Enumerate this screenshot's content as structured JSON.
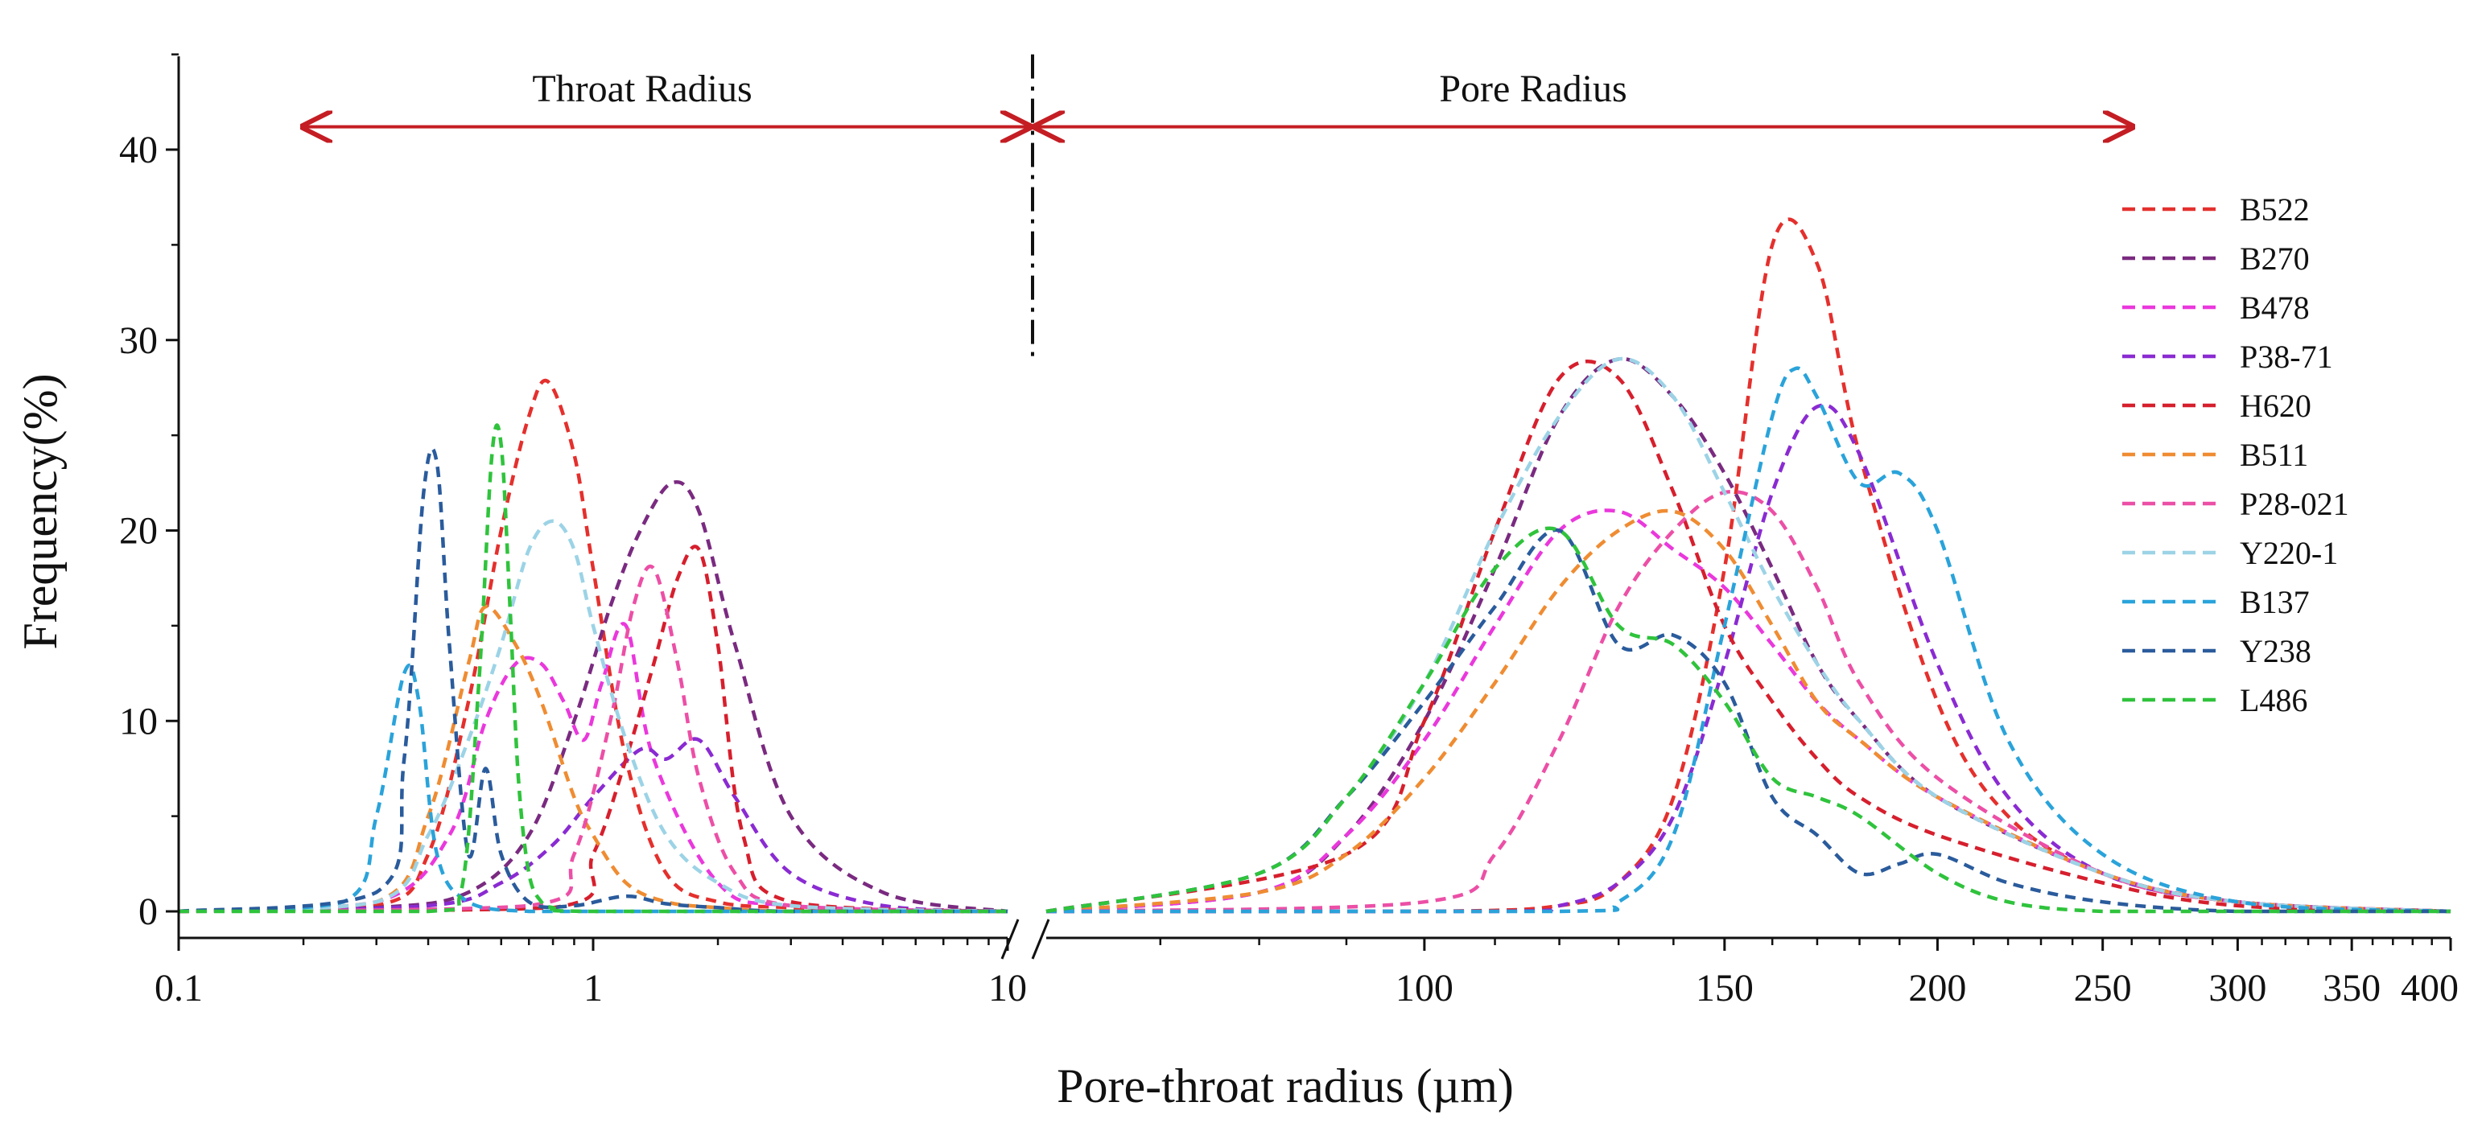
{
  "chart_data": {
    "type": "line",
    "title": "",
    "xlabel": "Pore-throat radius (µm)",
    "ylabel": "Frequency(%)",
    "ylim": [
      0,
      45
    ],
    "y_ticks": [
      0,
      10,
      20,
      30,
      40
    ],
    "y_tick_labels": [
      "0",
      "10",
      "20",
      "30",
      "40"
    ],
    "x_axis_segments": [
      {
        "name": "throat",
        "scale": "log",
        "range": [
          0.1,
          10
        ],
        "ticks": [
          0.1,
          1,
          10
        ],
        "tick_labels": [
          "0.1",
          "1",
          "10"
        ]
      },
      {
        "name": "pore",
        "scale": "log",
        "range": [
          60,
          400
        ],
        "ticks": [
          100,
          150,
          200,
          250,
          300,
          350,
          400
        ],
        "tick_labels": [
          "100",
          "150",
          "200",
          "250",
          "300",
          "350",
          "400"
        ]
      }
    ],
    "annotations": {
      "left_region_label": "Throat Radius",
      "right_region_label": "Pore Radius",
      "left_arrow_range": [
        0.2,
        10
      ],
      "right_arrow_range": [
        60,
        260
      ],
      "arrow_y": 41.2,
      "divider_y_range": [
        29,
        45
      ]
    },
    "legend_position": "right",
    "series": [
      {
        "name": "B522",
        "color": "#e4302d",
        "throat": {
          "x": [
            0.1,
            0.3,
            0.4,
            0.5,
            0.6,
            0.7,
            0.78,
            0.9,
            1.0,
            1.2,
            1.5,
            2,
            3,
            5,
            10
          ],
          "y": [
            0,
            0.3,
            3,
            11,
            20,
            26,
            27.8,
            24,
            18,
            8,
            2,
            0.5,
            0.2,
            0,
            0
          ]
        },
        "pore": {
          "x": [
            60,
            100,
            120,
            130,
            140,
            150,
            160,
            170,
            180,
            200,
            220,
            250,
            300,
            400
          ],
          "y": [
            0,
            0,
            0.3,
            1.5,
            6,
            18,
            35,
            34,
            24,
            11,
            5,
            2,
            0.5,
            0
          ]
        }
      },
      {
        "name": "B270",
        "color": "#7a2a80",
        "throat": {
          "x": [
            0.1,
            0.3,
            0.5,
            0.7,
            0.9,
            1.1,
            1.3,
            1.55,
            1.8,
            2.2,
            3,
            5,
            10
          ],
          "y": [
            0,
            0.2,
            1,
            4,
            10,
            16,
            20,
            22.5,
            21,
            14,
            5,
            1,
            0
          ]
        },
        "pore": {
          "x": [
            60,
            80,
            90,
            100,
            110,
            120,
            130,
            140,
            150,
            160,
            170,
            180,
            200,
            250,
            300,
            400
          ],
          "y": [
            0,
            1,
            4,
            10,
            18,
            26,
            29,
            27,
            23,
            18,
            13,
            10,
            6,
            2,
            0.5,
            0
          ]
        }
      },
      {
        "name": "B478",
        "color": "#ea38dc",
        "throat": {
          "x": [
            0.1,
            0.3,
            0.45,
            0.55,
            0.65,
            0.75,
            0.85,
            0.95,
            1.05,
            1.2,
            1.4,
            2,
            3,
            10
          ],
          "y": [
            0,
            0.5,
            4,
            10,
            13,
            13,
            11,
            9,
            12,
            15,
            8,
            1.5,
            0.3,
            0
          ]
        },
        "pore": {
          "x": [
            60,
            80,
            90,
            100,
            110,
            120,
            130,
            140,
            150,
            160,
            170,
            180,
            200,
            250,
            300,
            400
          ],
          "y": [
            0,
            1,
            4,
            9,
            15,
            20,
            21,
            19,
            17,
            14,
            11,
            9,
            6,
            2,
            0.5,
            0
          ]
        }
      },
      {
        "name": "P38-71",
        "color": "#8a2bd2",
        "throat": {
          "x": [
            0.1,
            0.4,
            0.6,
            0.8,
            1.0,
            1.3,
            1.5,
            1.8,
            2.2,
            3,
            5,
            10
          ],
          "y": [
            0,
            0.3,
            1.5,
            3.5,
            6,
            8.5,
            8,
            9,
            6,
            2,
            0.3,
            0
          ]
        },
        "pore": {
          "x": [
            60,
            110,
            120,
            130,
            140,
            150,
            160,
            170,
            180,
            200,
            220,
            250,
            300,
            400
          ],
          "y": [
            0,
            0,
            0.3,
            1.5,
            5,
            13,
            22,
            26.5,
            24,
            13,
            6,
            2,
            0.5,
            0
          ]
        }
      },
      {
        "name": "H620",
        "color": "#d61f2d",
        "throat": {
          "x": [
            0.1,
            0.8,
            1.0,
            1.2,
            1.4,
            1.6,
            1.8,
            2.0,
            2.3,
            3,
            10
          ],
          "y": [
            0,
            0.2,
            3,
            8,
            13,
            17.5,
            19,
            14,
            4,
            0.5,
            0
          ]
        },
        "pore": {
          "x": [
            60,
            90,
            100,
            110,
            120,
            130,
            140,
            150,
            160,
            170,
            180,
            200,
            250,
            300,
            400
          ],
          "y": [
            0,
            3,
            10,
            20,
            28,
            28,
            22,
            15,
            11,
            8,
            6,
            4,
            1.5,
            0.3,
            0
          ]
        }
      },
      {
        "name": "B511",
        "color": "#ef8c32",
        "throat": {
          "x": [
            0.1,
            0.3,
            0.4,
            0.5,
            0.55,
            0.65,
            0.75,
            0.9,
            1.0,
            1.2,
            1.5,
            2,
            3,
            10
          ],
          "y": [
            0,
            0.5,
            5,
            13,
            16,
            14,
            11,
            6,
            4,
            1.5,
            0.5,
            0.2,
            0,
            0
          ]
        },
        "pore": {
          "x": [
            60,
            80,
            90,
            100,
            110,
            120,
            130,
            140,
            150,
            160,
            170,
            180,
            200,
            250,
            300,
            400
          ],
          "y": [
            0,
            1,
            3,
            7,
            12,
            17,
            20,
            21,
            19,
            15,
            11,
            9,
            6,
            2,
            0.5,
            0
          ]
        }
      },
      {
        "name": "P28-021",
        "color": "#ec4fa6",
        "throat": {
          "x": [
            0.1,
            0.7,
            0.9,
            1.1,
            1.25,
            1.4,
            1.6,
            1.8,
            2.2,
            3,
            10
          ],
          "y": [
            0,
            0.3,
            3,
            10,
            16,
            18,
            13,
            7,
            2,
            0.3,
            0
          ]
        },
        "pore": {
          "x": [
            60,
            100,
            110,
            120,
            130,
            140,
            150,
            160,
            170,
            180,
            200,
            250,
            300,
            400
          ],
          "y": [
            0,
            0.5,
            3,
            9,
            16,
            20,
            22,
            21,
            17,
            12,
            7,
            2,
            0.5,
            0
          ]
        }
      },
      {
        "name": "Y220-1",
        "color": "#9cd3e6",
        "throat": {
          "x": [
            0.1,
            0.3,
            0.4,
            0.5,
            0.6,
            0.7,
            0.8,
            0.9,
            1.0,
            1.2,
            1.5,
            2,
            3,
            10
          ],
          "y": [
            0,
            0.5,
            4,
            9,
            14,
            19,
            20.5,
            19,
            15,
            9,
            4,
            1.5,
            0.3,
            0
          ]
        },
        "pore": {
          "x": [
            60,
            80,
            90,
            100,
            110,
            120,
            130,
            140,
            150,
            160,
            170,
            180,
            200,
            250,
            300,
            400
          ],
          "y": [
            0,
            2,
            6,
            12,
            20,
            26,
            29,
            27,
            22,
            17,
            13,
            10,
            6,
            2,
            0.5,
            0
          ]
        }
      },
      {
        "name": "B137",
        "color": "#2aa3da",
        "throat": {
          "x": [
            0.1,
            0.25,
            0.3,
            0.35,
            0.38,
            0.42,
            0.5,
            0.7,
            1,
            10
          ],
          "y": [
            0,
            0.5,
            5,
            12.5,
            11,
            3,
            0.5,
            0,
            0,
            0
          ]
        },
        "pore": {
          "x": [
            60,
            120,
            130,
            140,
            150,
            160,
            165,
            170,
            180,
            190,
            200,
            220,
            250,
            300,
            400
          ],
          "y": [
            0,
            0,
            0.5,
            4,
            15,
            26,
            28.5,
            27,
            22.5,
            23,
            20,
            9,
            3,
            0.5,
            0
          ]
        }
      },
      {
        "name": "Y238",
        "color": "#2a5b9c",
        "throat": {
          "x": [
            0.1,
            0.3,
            0.35,
            0.39,
            0.42,
            0.45,
            0.5,
            0.55,
            0.6,
            0.7,
            0.9,
            1.2,
            1.5,
            2,
            3,
            10
          ],
          "y": [
            0,
            1,
            8,
            22,
            23.5,
            14,
            3,
            7.5,
            3,
            0.5,
            0.3,
            0.8,
            0.4,
            0.2,
            0,
            0
          ]
        },
        "pore": {
          "x": [
            60,
            80,
            90,
            100,
            110,
            120,
            130,
            140,
            150,
            160,
            170,
            180,
            190,
            200,
            220,
            250,
            300,
            400
          ],
          "y": [
            0,
            2,
            6,
            11,
            16,
            20,
            14,
            14.5,
            12,
            6,
            4,
            2,
            2.5,
            3,
            1.5,
            0.5,
            0,
            0
          ]
        }
      },
      {
        "name": "L486",
        "color": "#2fc33c",
        "throat": {
          "x": [
            0.1,
            0.4,
            0.48,
            0.53,
            0.57,
            0.6,
            0.63,
            0.66,
            0.7,
            0.75,
            0.8,
            1.0,
            10
          ],
          "y": [
            0,
            0,
            1,
            12,
            24,
            24.5,
            16,
            7,
            2,
            0.5,
            0.2,
            0,
            0
          ]
        },
        "pore": {
          "x": [
            60,
            80,
            90,
            100,
            110,
            120,
            130,
            140,
            150,
            160,
            170,
            180,
            200,
            220,
            250,
            300,
            400
          ],
          "y": [
            0,
            2,
            6,
            12,
            18,
            20,
            15,
            14,
            11,
            7,
            6,
            5,
            2,
            0.5,
            0,
            0,
            0
          ]
        }
      }
    ]
  }
}
